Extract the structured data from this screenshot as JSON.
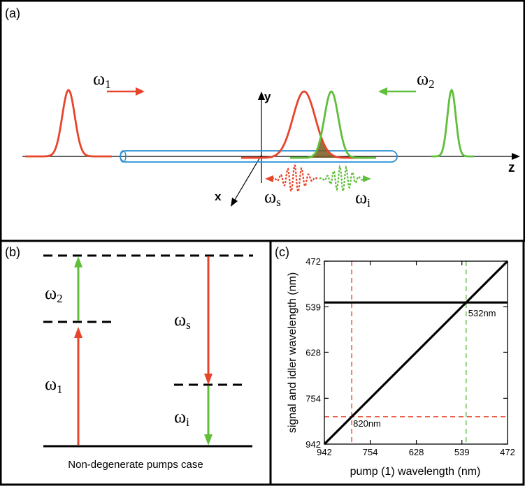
{
  "panel_a": {
    "label": "(a)",
    "omega1_base": "ω",
    "omega1_sub": "1",
    "omega2_base": "ω",
    "omega2_sub": "2",
    "omega_s_base": "ω",
    "omega_s_sub": "s",
    "omega_i_base": "ω",
    "omega_i_sub": "i",
    "axis_y": "y",
    "axis_x": "x",
    "axis_z": "z"
  },
  "panel_b": {
    "label": "(b)",
    "omega2_base": "ω",
    "omega2_sub": "2",
    "omega1_base": "ω",
    "omega1_sub": "1",
    "omega_s_base": "ω",
    "omega_s_sub": "s",
    "omega_i_base": "ω",
    "omega_i_sub": "i",
    "caption": "Non-degenerate pumps case"
  },
  "panel_c": {
    "label": "(c)",
    "annotation_532": "532nm",
    "annotation_820": "820nm"
  },
  "colors": {
    "pump1": "#e8442a",
    "pump2": "#5fbf3a",
    "fiber": "#2a8fd6",
    "overlap": "#7a5a1e"
  },
  "chart_data": {
    "type": "line",
    "xlabel": "pump (1) wavelength (nm)",
    "ylabel": "signal and idler wavelength (nm)",
    "x_ticks": [
      "942",
      "754",
      "628",
      "539",
      "472"
    ],
    "y_ticks": [
      "472",
      "539",
      "628",
      "754",
      "942"
    ],
    "x_scale": "reciprocal",
    "y_scale": "reciprocal",
    "xlim": [
      942,
      472
    ],
    "ylim": [
      942,
      472
    ],
    "series": [
      {
        "x": [
          942,
          472
        ],
        "y": [
          942,
          472
        ]
      },
      {
        "x": [
          942,
          472
        ],
        "y": [
          532,
          532
        ]
      }
    ],
    "guides": [
      {
        "orientation": "vertical",
        "x": 820
      },
      {
        "orientation": "horizontal",
        "y": 820
      },
      {
        "orientation": "vertical",
        "x": 532
      }
    ],
    "grid": false
  }
}
